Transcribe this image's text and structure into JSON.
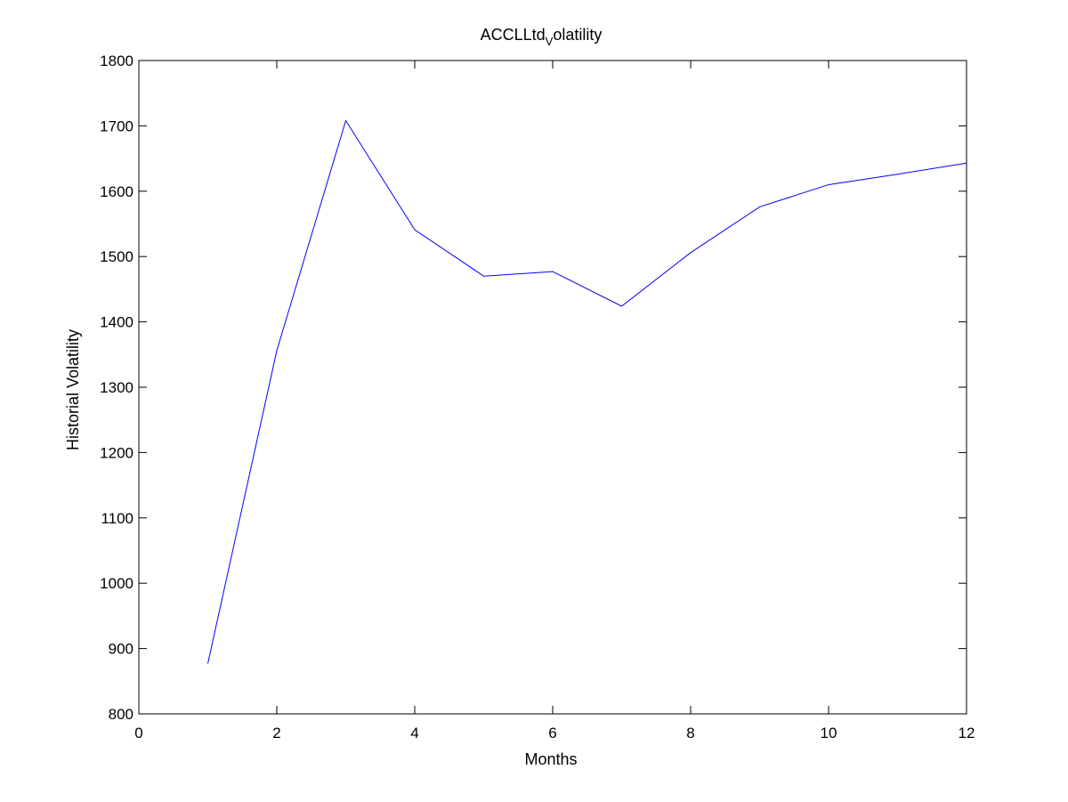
{
  "chart_data": {
    "type": "line",
    "title": {
      "before": "ACCLLtd",
      "subscript": "V",
      "after": "olatility"
    },
    "xlabel": "Months",
    "ylabel": "Historial Volatility",
    "xlim": [
      0,
      12
    ],
    "ylim": [
      800,
      1800
    ],
    "xticks": [
      0,
      2,
      4,
      6,
      8,
      10,
      12
    ],
    "yticks": [
      800,
      900,
      1000,
      1100,
      1200,
      1300,
      1400,
      1500,
      1600,
      1700,
      1800
    ],
    "grid": false,
    "series": [
      {
        "color": "#0000ff",
        "x": [
          1,
          2,
          3,
          4,
          5,
          6,
          7,
          8,
          9,
          10,
          11,
          12
        ],
        "y": [
          877,
          1356,
          1708,
          1541,
          1470,
          1477,
          1424,
          1506,
          1576,
          1610,
          1626,
          1643
        ]
      }
    ]
  }
}
